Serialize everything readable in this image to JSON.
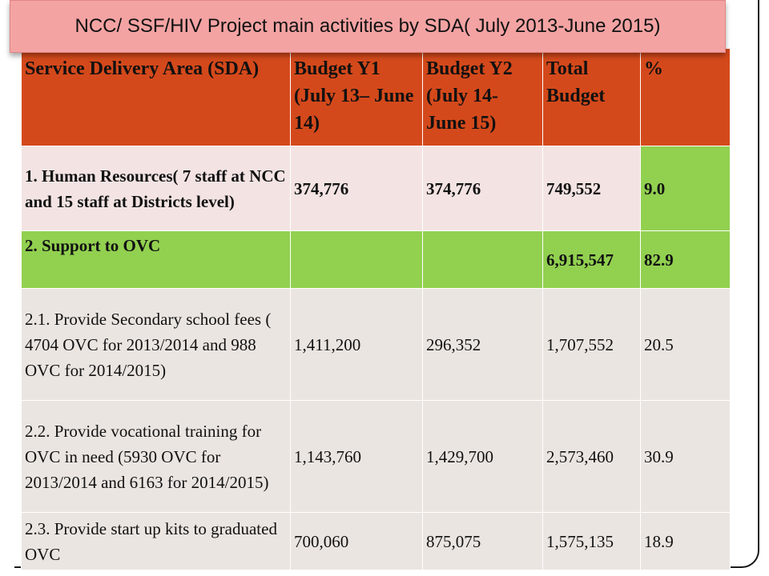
{
  "title": "NCC/ SSF/HIV Project main activities by SDA( July 2013-June 2015)",
  "table": {
    "headers": [
      "Service Delivery Area (SDA)",
      "Budget Y1 (July  13– June 14)",
      "Budget Y2 (July 14- June 15)",
      "Total Budget",
      "%"
    ],
    "rows": [
      [
        "1. Human Resources( 7 staff at NCC and 15 staff at Districts level)",
        "374,776",
        "374,776",
        "749,552",
        "9.0"
      ],
      [
        "2. Support to OVC",
        "",
        "",
        "6,915,547",
        "82.9"
      ],
      [
        "2.1. Provide Secondary school fees  ( 4704 OVC for 2013/2014 and 988 OVC  for 2014/2015)",
        "1,411,200",
        "296,352",
        "1,707,552",
        "20.5"
      ],
      [
        "2.2. Provide vocational training for OVC in need (5930 OVC for 2013/2014 and 6163 for 2014/2015)",
        "1,143,760",
        "1,429,700",
        "2,573,460",
        "30.9"
      ],
      [
        "2.3. Provide start up kits to graduated OVC",
        "700,060",
        "875,075",
        "1,575,135",
        "18.9"
      ]
    ]
  },
  "colors": {
    "header_bg": "#d4491b",
    "title_bg": "#f4a3a3",
    "highlight_green": "#92d050",
    "row_pink": "#f3e4e3",
    "row_gray": "#ebe5e1"
  }
}
